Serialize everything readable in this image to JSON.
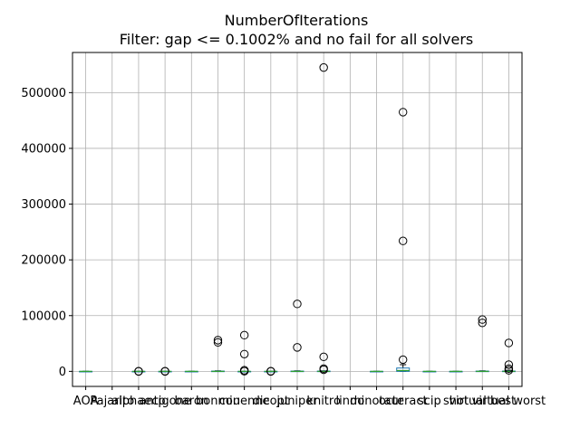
{
  "chart_data": {
    "type": "boxplot",
    "title": "NumberOfIterations",
    "subtitle": "Filter: gap <= 0.1002% and no fail for all solvers",
    "xlabel": "",
    "ylabel": "",
    "ylim": [
      -27000,
      572000
    ],
    "yticks": [
      0,
      100000,
      200000,
      300000,
      400000,
      500000
    ],
    "ytick_labels": [
      "0",
      "100000",
      "200000",
      "300000",
      "400000",
      "500000"
    ],
    "grid": true,
    "categories": [
      "AOA",
      "Pajarito",
      "alphaecp",
      "antigone",
      "baron",
      "bonmin",
      "couenne",
      "dicopt",
      "juniper",
      "knitro",
      "lindo",
      "minotaur",
      "octeract",
      "scip",
      "shot",
      "virtual best",
      "virtual worst"
    ],
    "boxes": [
      {
        "category": "AOA",
        "median": 0,
        "q1": 0,
        "q3": 0,
        "whislo": 0,
        "whishi": 0,
        "fliers": []
      },
      {
        "category": "Pajarito",
        "median": null,
        "q1": null,
        "q3": null,
        "whislo": null,
        "whishi": null,
        "fliers": []
      },
      {
        "category": "alphaecp",
        "median": 0,
        "q1": 0,
        "q3": 0,
        "whislo": 0,
        "whishi": 0,
        "fliers": [
          0,
          200
        ]
      },
      {
        "category": "antigone",
        "median": 0,
        "q1": 0,
        "q3": 0,
        "whislo": 0,
        "whishi": 0,
        "fliers": [
          0,
          300
        ]
      },
      {
        "category": "baron",
        "median": 0,
        "q1": 0,
        "q3": 0,
        "whislo": 0,
        "whishi": 0,
        "fliers": []
      },
      {
        "category": "bonmin",
        "median": 0,
        "q1": 0,
        "q3": 500,
        "whislo": 0,
        "whishi": 1000,
        "fliers": [
          52000,
          56000
        ]
      },
      {
        "category": "couenne",
        "median": 0,
        "q1": 0,
        "q3": 0,
        "whislo": 0,
        "whishi": 0,
        "fliers": [
          300,
          2000,
          31000,
          65000
        ]
      },
      {
        "category": "dicopt",
        "median": 0,
        "q1": 0,
        "q3": 0,
        "whislo": 0,
        "whishi": 0,
        "fliers": [
          0,
          300
        ]
      },
      {
        "category": "juniper",
        "median": 0,
        "q1": 0,
        "q3": 500,
        "whislo": 0,
        "whishi": 1000,
        "fliers": [
          43000,
          121000
        ]
      },
      {
        "category": "knitro",
        "median": 0,
        "q1": 0,
        "q3": 500,
        "whislo": 0,
        "whishi": 1000,
        "fliers": [
          3000,
          5000,
          26000,
          545000
        ]
      },
      {
        "category": "lindo",
        "median": null,
        "q1": null,
        "q3": null,
        "whislo": null,
        "whishi": null,
        "fliers": []
      },
      {
        "category": "minotaur",
        "median": 0,
        "q1": 0,
        "q3": 0,
        "whislo": 0,
        "whishi": 0,
        "fliers": []
      },
      {
        "category": "octeract",
        "median": 1500,
        "q1": 0,
        "q3": 6000,
        "whislo": 0,
        "whishi": 12000,
        "fliers": [
          21000,
          234000,
          465000
        ]
      },
      {
        "category": "scip",
        "median": 0,
        "q1": 0,
        "q3": 0,
        "whislo": 0,
        "whishi": 0,
        "fliers": []
      },
      {
        "category": "shot",
        "median": 0,
        "q1": 0,
        "q3": 0,
        "whislo": 0,
        "whishi": 0,
        "fliers": []
      },
      {
        "category": "virtual best",
        "median": 0,
        "q1": 0,
        "q3": 500,
        "whislo": 0,
        "whishi": 1000,
        "fliers": [
          87000,
          93000
        ]
      },
      {
        "category": "virtual worst",
        "median": 0,
        "q1": 0,
        "q3": 500,
        "whislo": 0,
        "whishi": 2000,
        "fliers": [
          2000,
          5000,
          12000,
          51000
        ]
      }
    ],
    "colors": {
      "box": "#1f77b4",
      "median": "#2ca02c",
      "whisker": "#000000",
      "grid": "#b0b0b0",
      "flier": "#000000"
    }
  }
}
